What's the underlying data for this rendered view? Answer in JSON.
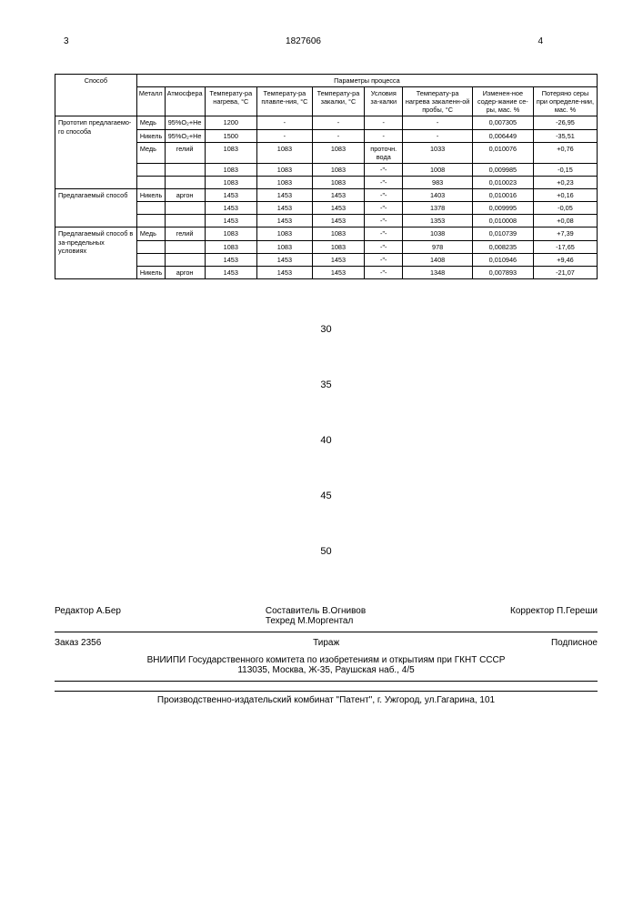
{
  "header": {
    "left_page": "3",
    "doc_number": "1827606",
    "right_page": "4"
  },
  "artifact_text": "",
  "table": {
    "top_header": "Параметры процесса",
    "columns": {
      "method": "Способ",
      "metal": "Металл",
      "atmosphere": "Атмосфера",
      "temp_heat": "Температу-ра нагрева, °C",
      "temp_melt": "Температу-ра плавле-ния, °C",
      "temp_quench": "Температу-ра закалки, °C",
      "quench_cond": "Условия за-калки",
      "temp_heat_sample": "Температу-ра нагрева закаленн-ой пробы, °C",
      "sulfur_changed": "Изменен-ное содер-жание се-ры, мас. %",
      "sulfur_lost": "Потеряно серы при определе-нии, мас. %"
    },
    "rows": [
      {
        "method": "Прототип предлагаемо-го способа",
        "metal": "Медь",
        "atm": "95%O₂+He",
        "th": "1200",
        "tm": "-",
        "tq": "-",
        "qc": "-",
        "ths": "-",
        "sc": "0,007305",
        "sl": "-26,95"
      },
      {
        "method": "",
        "metal": "Никель",
        "atm": "95%O₂+He",
        "th": "1500",
        "tm": "-",
        "tq": "-",
        "qc": "-",
        "ths": "-",
        "sc": "0,006449",
        "sl": "-35,51"
      },
      {
        "method": "",
        "metal": "Медь",
        "atm": "гелий",
        "th": "1083",
        "tm": "1083",
        "tq": "1083",
        "qc": "проточн. вода",
        "ths": "1033",
        "sc": "0,010076",
        "sl": "+0,76"
      },
      {
        "method": "",
        "metal": "",
        "atm": "",
        "th": "1083",
        "tm": "1083",
        "tq": "1083",
        "qc": "-\"-",
        "ths": "1008",
        "sc": "0,009985",
        "sl": "-0,15"
      },
      {
        "method": "",
        "metal": "",
        "atm": "",
        "th": "1083",
        "tm": "1083",
        "tq": "1083",
        "qc": "-\"-",
        "ths": "983",
        "sc": "0,010023",
        "sl": "+0,23"
      },
      {
        "method": "Предлагаемый способ",
        "metal": "Никель",
        "atm": "аргон",
        "th": "1453",
        "tm": "1453",
        "tq": "1453",
        "qc": "-\"-",
        "ths": "1403",
        "sc": "0,010016",
        "sl": "+0,16"
      },
      {
        "method": "",
        "metal": "",
        "atm": "",
        "th": "1453",
        "tm": "1453",
        "tq": "1453",
        "qc": "-\"-",
        "ths": "1378",
        "sc": "0,009995",
        "sl": "-0,05"
      },
      {
        "method": "",
        "metal": "",
        "atm": "",
        "th": "1453",
        "tm": "1453",
        "tq": "1453",
        "qc": "-\"-",
        "ths": "1353",
        "sc": "0,010008",
        "sl": "+0,08"
      },
      {
        "method": "Предлагаемый способ в за-предельных условиях",
        "metal": "Медь",
        "atm": "гелий",
        "th": "1083",
        "tm": "1083",
        "tq": "1083",
        "qc": "-\"-",
        "ths": "1038",
        "sc": "0,010739",
        "sl": "+7,39"
      },
      {
        "method": "",
        "metal": "",
        "atm": "",
        "th": "1083",
        "tm": "1083",
        "tq": "1083",
        "qc": "-\"-",
        "ths": "978",
        "sc": "0,008235",
        "sl": "-17,65"
      },
      {
        "method": "",
        "metal": "",
        "atm": "",
        "th": "1453",
        "tm": "1453",
        "tq": "1453",
        "qc": "-\"-",
        "ths": "1408",
        "sc": "0,010946",
        "sl": "+9,46"
      },
      {
        "method": "",
        "metal": "Никель",
        "atm": "аргон",
        "th": "1453",
        "tm": "1453",
        "tq": "1453",
        "qc": "-\"-",
        "ths": "1348",
        "sc": "0,007893",
        "sl": "-21,07"
      }
    ]
  },
  "scale_marks": [
    "30",
    "35",
    "40",
    "45",
    "50"
  ],
  "credits": {
    "editor": "Редактор  А.Бер",
    "compiler": "Составитель    В.Огнивов",
    "techred": "Техред М.Моргентал",
    "corrector": "Корректор   П.Гереши",
    "order": "Заказ 2356",
    "tirazh": "Тираж",
    "subscribe": "Подписное",
    "org1": "ВНИИПИ Государственного комитета по изобретениям и открытиям при ГКНТ СССР",
    "org2": "113035, Москва, Ж-35, Раушская наб., 4/5"
  },
  "footer": "Производственно-издательский комбинат \"Патент\", г. Ужгород, ул.Гагарина, 101"
}
